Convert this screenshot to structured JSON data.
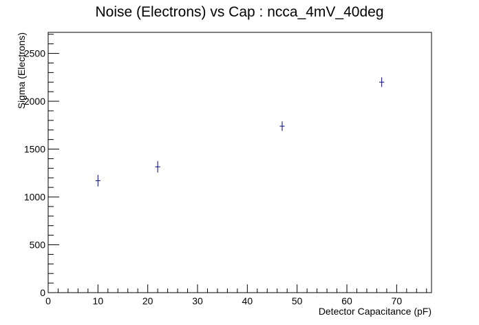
{
  "title": "Noise (Electrons) vs Cap : ncca_4mV_40deg",
  "chart_data": {
    "type": "scatter",
    "title": "Noise (Electrons) vs Cap : ncca_4mV_40deg",
    "xlabel": "Detector Capacitance (pF)",
    "ylabel": "Sigma (Electrons)",
    "xlim": [
      0,
      77
    ],
    "ylim": [
      0,
      2720
    ],
    "xticks": [
      0,
      10,
      20,
      30,
      40,
      50,
      60,
      70
    ],
    "yticks": [
      0,
      500,
      1000,
      1500,
      2000,
      2500
    ],
    "grid": false,
    "points": [
      {
        "x": 10,
        "y": 1170,
        "yerr": 60,
        "xerr": 0.5
      },
      {
        "x": 22,
        "y": 1315,
        "yerr": 60,
        "xerr": 0.5
      },
      {
        "x": 47,
        "y": 1740,
        "yerr": 50,
        "xerr": 0.5
      },
      {
        "x": 67,
        "y": 2200,
        "yerr": 50,
        "xerr": 0.5
      }
    ],
    "marker_color": "#000080"
  }
}
